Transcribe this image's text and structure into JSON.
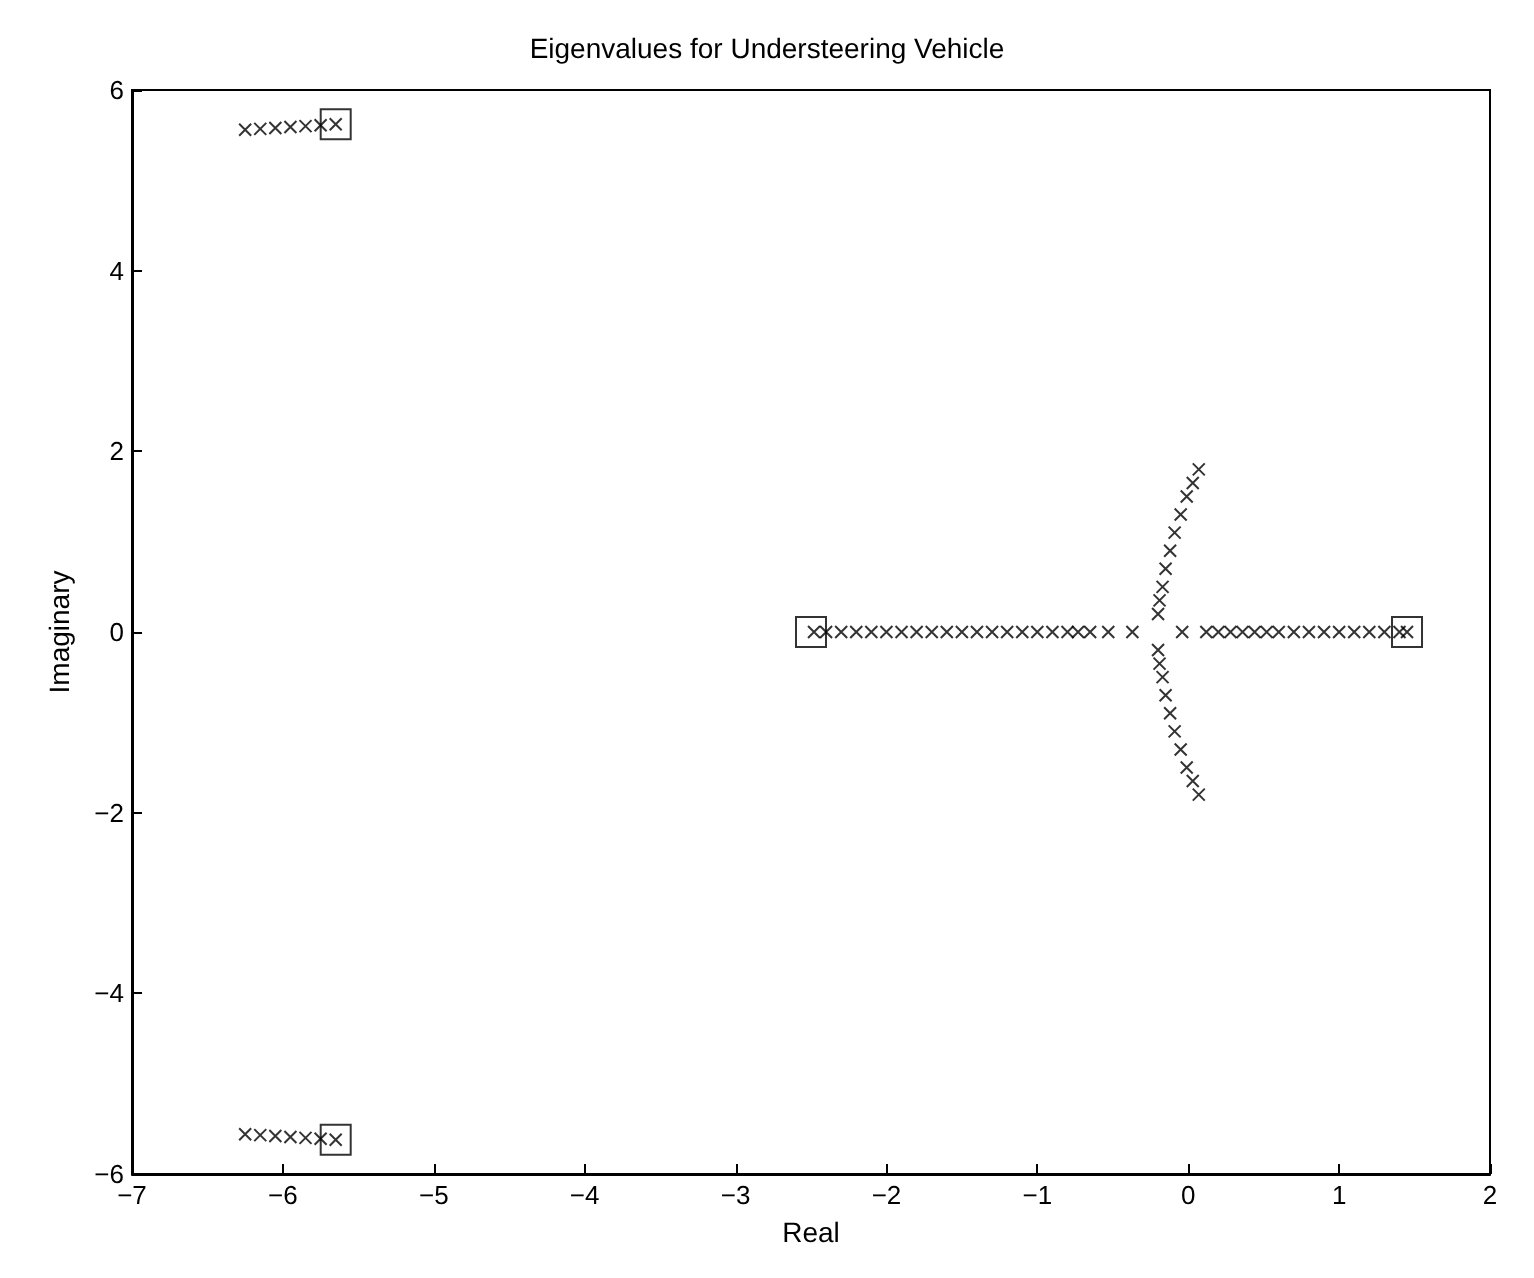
{
  "chart_data": {
    "type": "scatter",
    "title": "Eigenvalues for Understeering Vehicle",
    "xlabel": "Real",
    "ylabel": "Imaginary",
    "xlim": [
      -7,
      2
    ],
    "ylim": [
      -6,
      6
    ],
    "xticks": [
      -7,
      -6,
      -5,
      -4,
      -3,
      -2,
      -1,
      0,
      1,
      2
    ],
    "yticks": [
      -6,
      -4,
      -2,
      0,
      2,
      4,
      6
    ],
    "series": [
      {
        "color": "#000000",
        "marker": "cross",
        "x": [
          -6.25,
          -6.15,
          -6.05,
          -5.95,
          -5.85,
          -5.75,
          -5.65,
          -6.25,
          -6.15,
          -6.05,
          -5.95,
          -5.85,
          -5.75,
          -5.65,
          -2.48,
          -2.4,
          -2.3,
          -2.2,
          -2.1,
          -2.0,
          -1.9,
          -1.8,
          -1.7,
          -1.6,
          -1.5,
          -1.4,
          -1.3,
          -1.2,
          -1.1,
          -1.0,
          -0.9,
          -0.8,
          -0.73,
          -0.65,
          -0.53,
          -0.37,
          -0.04,
          0.12,
          0.2,
          0.28,
          0.36,
          0.44,
          0.52,
          0.6,
          0.7,
          0.8,
          0.9,
          1.0,
          1.1,
          1.2,
          1.3,
          1.4,
          1.45,
          -0.2,
          -0.19,
          -0.17,
          -0.15,
          -0.12,
          -0.09,
          -0.05,
          -0.01,
          0.03,
          0.07,
          -0.2,
          -0.19,
          -0.17,
          -0.15,
          -0.12,
          -0.09,
          -0.05,
          -0.01,
          0.03,
          0.07
        ],
        "values": [
          5.56,
          5.57,
          5.58,
          5.59,
          5.6,
          5.61,
          5.62,
          -5.56,
          -5.57,
          -5.58,
          -5.59,
          -5.6,
          -5.61,
          -5.62,
          0,
          0,
          0,
          0,
          0,
          0,
          0,
          0,
          0,
          0,
          0,
          0,
          0,
          0,
          0,
          0,
          0,
          0,
          0,
          0,
          0,
          0,
          0,
          0,
          0,
          0,
          0,
          0,
          0,
          0,
          0,
          0,
          0,
          0,
          0,
          0,
          0,
          0,
          0,
          0.2,
          0.35,
          0.5,
          0.7,
          0.9,
          1.1,
          1.3,
          1.5,
          1.65,
          1.8,
          -0.2,
          -0.35,
          -0.5,
          -0.7,
          -0.9,
          -1.1,
          -1.3,
          -1.5,
          -1.65,
          -1.8
        ]
      },
      {
        "color": "#000000",
        "marker": "square",
        "x": [
          -5.65,
          -5.65,
          -2.5,
          1.45
        ],
        "values": [
          5.62,
          -5.62,
          0,
          0
        ]
      }
    ]
  }
}
